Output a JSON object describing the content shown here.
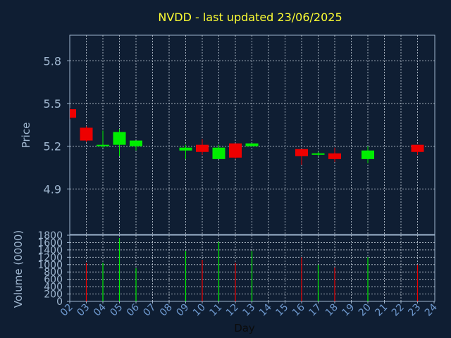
{
  "chart_data": {
    "type": "candlestick",
    "title": "NVDD - last updated 23/06/2025",
    "xlabel": "Day",
    "ylabel": "Price",
    "volume_label": "Volume (0000)",
    "grid": true,
    "colors": {
      "background": "#0f1e33",
      "axis": "#9fb6cf",
      "grid": "#c8d2de",
      "title": "#ffff33",
      "up": "#00ee00",
      "down": "#ee0000"
    },
    "price_axis": {
      "ylim": [
        4.58,
        5.98
      ],
      "ticks": [
        "4.9",
        "5.2",
        "5.5",
        "5.8"
      ],
      "tick_values": [
        4.9,
        5.2,
        5.5,
        5.8
      ]
    },
    "volume_axis": {
      "ylim": [
        0,
        1800
      ],
      "ticks": [
        "0",
        "200",
        "400",
        "600",
        "800",
        "1000",
        "1200",
        "1400",
        "1600",
        "1800"
      ],
      "tick_values": [
        0,
        200,
        400,
        600,
        800,
        1000,
        1200,
        1400,
        1600,
        1800
      ]
    },
    "x_axis": {
      "ticks": [
        "02",
        "03",
        "04",
        "05",
        "06",
        "07",
        "08",
        "09",
        "10",
        "11",
        "12",
        "13",
        "14",
        "15",
        "16",
        "17",
        "18",
        "19",
        "20",
        "21",
        "22",
        "23",
        "24"
      ]
    },
    "candles": [
      {
        "day": "02",
        "open": 5.46,
        "high": 5.47,
        "low": 5.39,
        "close": 5.4,
        "volume": 0
      },
      {
        "day": "03",
        "open": 5.33,
        "high": 5.34,
        "low": 5.23,
        "close": 5.24,
        "volume": 1050
      },
      {
        "day": "04",
        "open": 5.2,
        "high": 5.31,
        "low": 5.19,
        "close": 5.21,
        "volume": 1050
      },
      {
        "day": "05",
        "open": 5.21,
        "high": 5.32,
        "low": 5.13,
        "close": 5.3,
        "volume": 1720
      },
      {
        "day": "06",
        "open": 5.2,
        "high": 5.24,
        "low": 5.17,
        "close": 5.24,
        "volume": 900
      },
      {
        "day": "09",
        "open": 5.17,
        "high": 5.21,
        "low": 5.11,
        "close": 5.19,
        "volume": 1370
      },
      {
        "day": "10",
        "open": 5.21,
        "high": 5.25,
        "low": 5.14,
        "close": 5.16,
        "volume": 1130
      },
      {
        "day": "11",
        "open": 5.11,
        "high": 5.21,
        "low": 5.11,
        "close": 5.19,
        "volume": 1620
      },
      {
        "day": "12",
        "open": 5.22,
        "high": 5.22,
        "low": 5.11,
        "close": 5.12,
        "volume": 1050
      },
      {
        "day": "13",
        "open": 5.2,
        "high": 5.22,
        "low": 5.2,
        "close": 5.22,
        "volume": 1370
      },
      {
        "day": "16",
        "open": 5.18,
        "high": 5.18,
        "low": 5.07,
        "close": 5.13,
        "volume": 1200
      },
      {
        "day": "17",
        "open": 5.14,
        "high": 5.16,
        "low": 5.13,
        "close": 5.15,
        "volume": 1000
      },
      {
        "day": "18",
        "open": 5.15,
        "high": 5.19,
        "low": 5.09,
        "close": 5.11,
        "volume": 920
      },
      {
        "day": "20",
        "open": 5.11,
        "high": 5.2,
        "low": 5.08,
        "close": 5.17,
        "volume": 1200
      },
      {
        "day": "23",
        "open": 5.21,
        "high": 5.21,
        "low": 5.14,
        "close": 5.16,
        "volume": 1000
      }
    ]
  }
}
